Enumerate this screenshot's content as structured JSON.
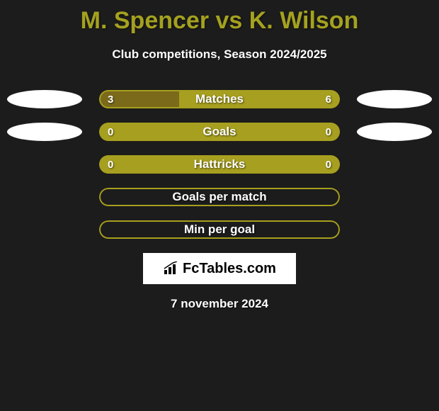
{
  "title": "M. Spencer vs K. Wilson",
  "subtitle": "Club competitions, Season 2024/2025",
  "date": "7 november 2024",
  "logo_text": "FcTables.com",
  "colors": {
    "background": "#1c1c1c",
    "title": "#a4a11f",
    "text": "#ffffff",
    "bar_olive": "#a79f1f",
    "bar_brown": "#7a6a1a",
    "oval": "#ffffff",
    "logo_bg": "#ffffff",
    "logo_text": "#000000"
  },
  "rows": [
    {
      "label": "Matches",
      "left_value": "3",
      "right_value": "6",
      "left_pct": 33.33,
      "fill_left_color": "#7a6a1a",
      "fill_right_color": "#a79f1f",
      "border_color": "#a79f1f",
      "show_fill": true,
      "show_values": true,
      "left_oval": true,
      "right_oval": true
    },
    {
      "label": "Goals",
      "left_value": "0",
      "right_value": "0",
      "left_pct": 0,
      "fill_left_color": "#7a6a1a",
      "fill_right_color": "#a79f1f",
      "border_color": "#a79f1f",
      "show_fill": true,
      "show_values": true,
      "left_oval": true,
      "right_oval": true
    },
    {
      "label": "Hattricks",
      "left_value": "0",
      "right_value": "0",
      "left_pct": 0,
      "fill_left_color": "#7a6a1a",
      "fill_right_color": "#a79f1f",
      "border_color": "#a79f1f",
      "show_fill": true,
      "show_values": true,
      "left_oval": false,
      "right_oval": false
    },
    {
      "label": "Goals per match",
      "left_value": "",
      "right_value": "",
      "left_pct": 0,
      "fill_left_color": "#7a6a1a",
      "fill_right_color": "#a79f1f",
      "border_color": "#a79f1f",
      "show_fill": false,
      "show_values": false,
      "left_oval": false,
      "right_oval": false
    },
    {
      "label": "Min per goal",
      "left_value": "",
      "right_value": "",
      "left_pct": 0,
      "fill_left_color": "#7a6a1a",
      "fill_right_color": "#a79f1f",
      "border_color": "#a79f1f",
      "show_fill": false,
      "show_values": false,
      "left_oval": false,
      "right_oval": false
    }
  ]
}
